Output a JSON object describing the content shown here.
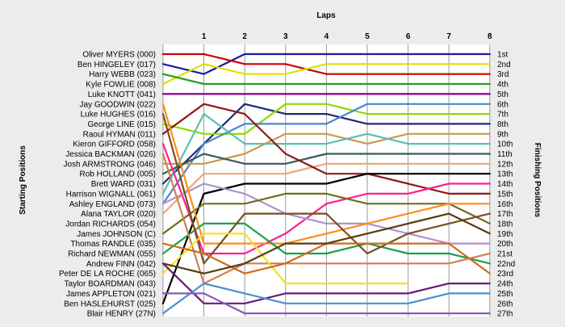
{
  "chart_data": {
    "type": "line",
    "title": "Laps",
    "ylabel_left": "Starting Positions",
    "ylabel_right": "Finishing Positions",
    "laps": [
      1,
      2,
      3,
      4,
      5,
      6,
      7,
      8
    ],
    "start_labels": [
      "Oliver MYERS (000)",
      "Ben HINGELEY (017)",
      "Harry WEBB (023)",
      "Kyle FOWLIE (008)",
      "Luke KNOTT (041)",
      "Jay GOODWIN (022)",
      "Luke HUGHES (016)",
      "George LINE (015)",
      "Raoul HYMAN (011)",
      "Kieron GIFFORD (058)",
      "Jessica BACKMAN (026)",
      "Josh ARMSTRONG (046)",
      "Rob HOLLAND (005)",
      "Brett WARD (031)",
      "Harrison WIGNALL (061)",
      "Ashley ENGLAND (073)",
      "Alana TAYLOR (020)",
      "Jordan RICHARDS (054)",
      "James JOHNSON (C)",
      "Thomas RANDLE (035)",
      "Richard NEWMAN (055)",
      "Andrew FINN (042)",
      "Peter DE LA ROCHE (065)",
      "Taylor BOARDMAN (043)",
      "James APPLETON (021)",
      "Ben HASLEHURST (025)",
      "Blair HENRY (27N)"
    ],
    "finish_labels": [
      "1st",
      "2nd",
      "3rd",
      "4th",
      "5th",
      "6th",
      "7th",
      "8th",
      "9th",
      "10th",
      "11th",
      "12th",
      "13th",
      "14th",
      "15th",
      "16th",
      "17th",
      "18th",
      "19th",
      "20th",
      "21st",
      "22nd",
      "23rd",
      "24th",
      "25th",
      "26th",
      "27th"
    ],
    "series": [
      {
        "color": "#1a1aa0",
        "positions": [
          2,
          3,
          1,
          1,
          1,
          1,
          1,
          1,
          1
        ]
      },
      {
        "color": "#cc0000",
        "positions": [
          1,
          1,
          2,
          2,
          3,
          3,
          3,
          3,
          3
        ]
      },
      {
        "color": "#e0e000",
        "positions": [
          4,
          2,
          3,
          3,
          2,
          2,
          2,
          2,
          2
        ]
      },
      {
        "color": "#22a022",
        "positions": [
          3,
          4,
          4,
          4,
          4,
          4,
          4,
          4,
          4
        ]
      },
      {
        "color": "#800080",
        "positions": [
          5,
          5,
          5,
          5,
          5,
          5,
          5,
          5,
          5
        ]
      },
      {
        "color": "#1e2a6e",
        "positions": [
          14,
          10,
          6,
          7,
          7,
          8,
          8,
          8,
          8
        ]
      },
      {
        "color": "#88dd00",
        "positions": [
          8,
          9,
          9,
          6,
          6,
          7,
          7,
          7,
          7
        ]
      },
      {
        "color": "#4a86d0",
        "positions": [
          16,
          10,
          8,
          8,
          8,
          6,
          6,
          6,
          6
        ]
      },
      {
        "color": "#c89a48",
        "positions": [
          12,
          12,
          11,
          9,
          9,
          10,
          9,
          9,
          9
        ]
      },
      {
        "color": "#5abfb0",
        "positions": [
          15,
          7,
          10,
          10,
          10,
          9,
          10,
          10,
          10
        ]
      },
      {
        "color": "#3a5a5a",
        "positions": [
          13,
          11,
          12,
          12,
          11,
          11,
          11,
          11,
          11
        ]
      },
      {
        "color": "#e8a878",
        "positions": [
          17,
          13,
          13,
          13,
          12,
          12,
          12,
          12,
          12
        ]
      },
      {
        "color": "#8b1a1a",
        "positions": [
          9,
          6,
          7,
          11,
          13,
          13,
          14,
          15,
          15
        ]
      },
      {
        "color": "#000000",
        "positions": [
          26,
          15,
          14,
          14,
          14,
          13,
          13,
          13,
          13
        ]
      },
      {
        "color": "#ff2090",
        "positions": [
          10,
          21,
          21,
          19,
          16,
          15,
          15,
          14,
          14
        ]
      },
      {
        "color": "#b090d0",
        "positions": [
          16,
          14,
          15,
          17,
          18,
          18,
          19,
          20,
          20
        ]
      },
      {
        "color": "#6e6e20",
        "positions": [
          19,
          16,
          16,
          15,
          15,
          16,
          16,
          16,
          18
        ]
      },
      {
        "color": "#ff8c1a",
        "positions": [
          6,
          20,
          20,
          20,
          19,
          18,
          17,
          16,
          16
        ]
      },
      {
        "color": "#1aa050",
        "positions": [
          21,
          18,
          18,
          21,
          21,
          20,
          21,
          21,
          22
        ]
      },
      {
        "color": "#7a4e1e",
        "positions": [
          7,
          22,
          17,
          17,
          17,
          21,
          19,
          18,
          17
        ]
      },
      {
        "color": "#d08050",
        "positions": [
          11,
          24,
          22,
          22,
          22,
          22,
          22,
          22,
          21
        ]
      },
      {
        "color": "#f5e020",
        "positions": [
          23,
          19,
          19,
          24,
          24,
          24,
          24
        ]
      },
      {
        "color": "#d2691e",
        "positions": [
          20,
          21,
          23,
          22,
          20,
          20,
          20,
          20,
          23
        ]
      },
      {
        "color": "#5a3a10",
        "positions": [
          22,
          23,
          22,
          20,
          20,
          19,
          18,
          17,
          19
        ]
      },
      {
        "color": "#6b1a7a",
        "positions": [
          22,
          26,
          26,
          25,
          25,
          25,
          25,
          24,
          24
        ]
      },
      {
        "color": "#4a90d0",
        "positions": [
          27,
          24,
          25,
          26,
          26,
          26,
          26,
          25,
          25
        ]
      },
      {
        "color": "#8a5ab0",
        "positions": [
          25,
          25,
          27,
          27,
          27,
          27,
          27,
          27,
          27
        ]
      }
    ]
  }
}
